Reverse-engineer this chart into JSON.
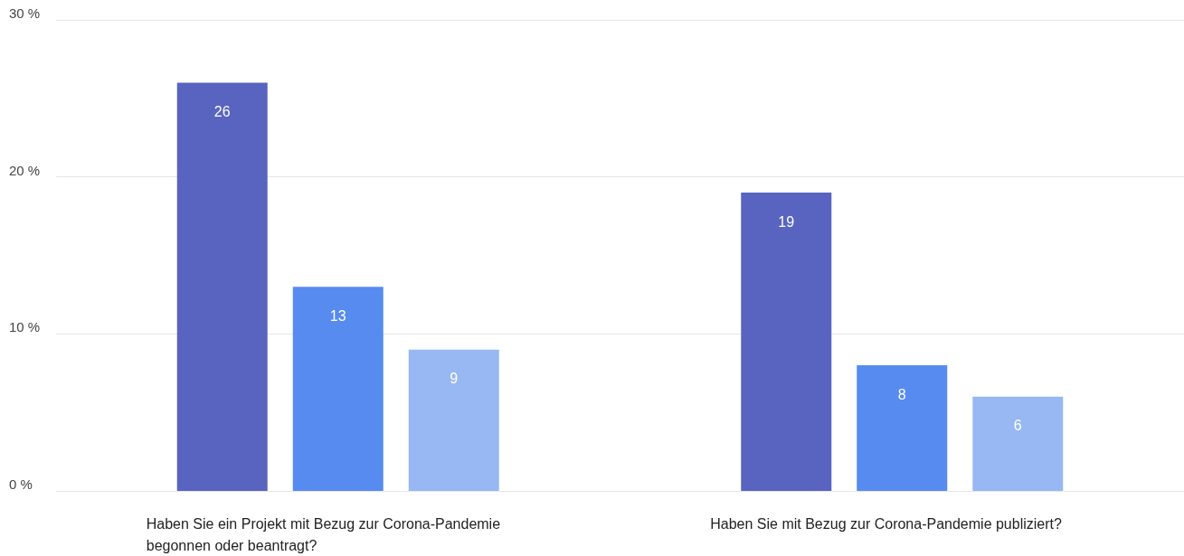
{
  "chart_data": {
    "type": "bar",
    "categories": [
      "Haben Sie ein Projekt mit Bezug zur Corona-Pandemie begonnen oder beantragt?",
      "Haben Sie mit Bezug zur Corona-Pandemie publiziert?"
    ],
    "series": [
      {
        "color": "#5864bf",
        "values": [
          26,
          19
        ]
      },
      {
        "color": "#578bf0",
        "values": [
          13,
          8
        ]
      },
      {
        "color": "#97b8f2",
        "values": [
          9,
          6
        ]
      }
    ],
    "data_labels": true,
    "ylim": [
      0,
      30
    ],
    "yticks": [
      {
        "value": 0,
        "label": "0 %"
      },
      {
        "value": 10,
        "label": "10 %"
      },
      {
        "value": 20,
        "label": "20 %"
      },
      {
        "value": 30,
        "label": "30 %"
      }
    ],
    "grid": "y"
  }
}
